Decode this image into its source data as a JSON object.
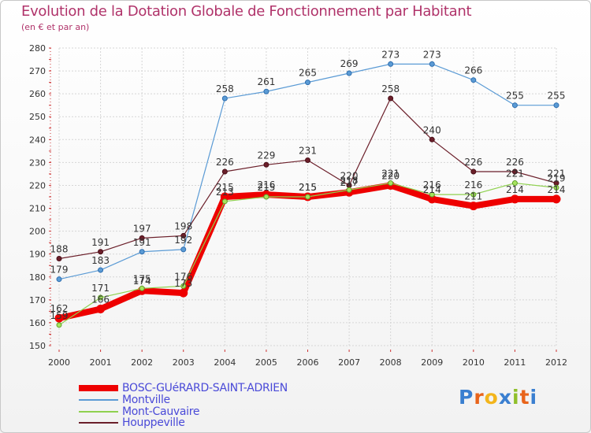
{
  "chart_data": {
    "type": "line",
    "title": "Evolution de la Dotation Globale de Fonctionnement par Habitant",
    "subtitle": "(en € et par an)",
    "xlabel": "",
    "ylabel": "",
    "categories": [
      "2000",
      "2001",
      "2002",
      "2003",
      "2004",
      "2005",
      "2006",
      "2007",
      "2008",
      "2009",
      "2010",
      "2011",
      "2012"
    ],
    "ylim": [
      150,
      280
    ],
    "yticks": [
      150,
      160,
      170,
      180,
      190,
      200,
      210,
      220,
      230,
      240,
      250,
      260,
      270,
      280
    ],
    "grid": true,
    "legend_position": "bottom-left",
    "series": [
      {
        "name": "BOSC-GUéRARD-SAINT-ADRIEN",
        "color": "#ee0000",
        "values": [
          162,
          166,
          174,
          173,
          215,
          216,
          215,
          217,
          220,
          214,
          211,
          214,
          214
        ],
        "labels": [
          "162",
          "166",
          "174",
          "173",
          "215",
          "216",
          "215",
          "217",
          "220",
          "214",
          "211",
          "214",
          "214"
        ]
      },
      {
        "name": "Montville",
        "color": "#5b9bd5",
        "values": [
          179,
          183,
          191,
          192,
          258,
          261,
          265,
          269,
          273,
          273,
          266,
          255,
          255
        ],
        "labels": [
          "179",
          "183",
          "191",
          "192",
          "258",
          "261",
          "265",
          "269",
          "273",
          "273",
          "266",
          "255",
          "255"
        ]
      },
      {
        "name": "Mont-Cauvaire",
        "color": "#8fd14f",
        "values": [
          159,
          171,
          175,
          176,
          213,
          215,
          215,
          218,
          221,
          216,
          216,
          221,
          219
        ],
        "labels": [
          "159",
          "171",
          "175",
          "176",
          "213",
          "215",
          "215",
          "218",
          "221",
          "216",
          "216",
          "221",
          "219"
        ]
      },
      {
        "name": "Houppeville",
        "color": "#6b1f2a",
        "values": [
          188,
          191,
          197,
          198,
          226,
          229,
          231,
          220,
          258,
          240,
          226,
          226,
          221
        ],
        "labels": [
          "188",
          "191",
          "197",
          "198",
          "226",
          "229",
          "231",
          "220",
          "258",
          "240",
          "226",
          "226",
          "221"
        ]
      }
    ]
  },
  "logo": {
    "text": "Proxiti",
    "letters": [
      "P",
      "r",
      "o",
      "x",
      "i",
      "t",
      "i"
    ],
    "colors": [
      "#3a7fd0",
      "#e8641b",
      "#f3b51b",
      "#3a7fd0",
      "#8fbf2a",
      "#e8641b",
      "#3a7fd0"
    ]
  }
}
